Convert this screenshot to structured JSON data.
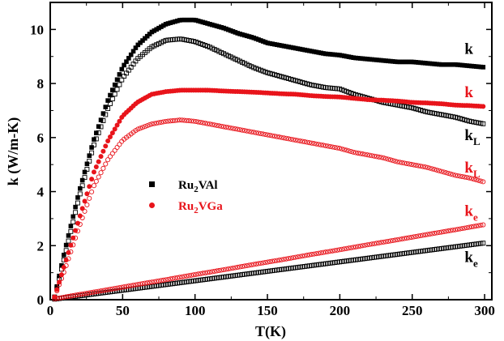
{
  "chart_data": {
    "type": "scatter",
    "xlabel": "T(K)",
    "ylabel": "k (W/m-K)",
    "xlim": [
      0,
      305
    ],
    "ylim": [
      0,
      11
    ],
    "xticks": [
      0,
      50,
      100,
      150,
      200,
      250,
      300
    ],
    "yticks": [
      0,
      2,
      4,
      6,
      8,
      10
    ],
    "grid": false,
    "legend_position": "center-left",
    "legend": [
      {
        "label_main": "Ru",
        "label_sub": "2",
        "label_rest": "VAl",
        "color": "#000000",
        "marker": "square"
      },
      {
        "label_main": "Ru",
        "label_sub": "2",
        "label_rest": "VGa",
        "color": "#e8141b",
        "marker": "circle"
      }
    ],
    "series": [
      {
        "material": "Ru2VAl",
        "quantity": "k",
        "marker": "filled-square",
        "color": "#000000",
        "x": [
          3,
          10,
          20,
          30,
          40,
          50,
          60,
          70,
          80,
          90,
          100,
          110,
          120,
          130,
          140,
          150,
          160,
          170,
          180,
          190,
          200,
          210,
          220,
          230,
          240,
          250,
          260,
          270,
          280,
          290,
          300
        ],
        "y": [
          0.1,
          1.8,
          4.0,
          5.9,
          7.4,
          8.6,
          9.4,
          9.9,
          10.2,
          10.35,
          10.35,
          10.2,
          10.05,
          9.85,
          9.7,
          9.5,
          9.4,
          9.3,
          9.2,
          9.1,
          9.05,
          8.95,
          8.9,
          8.85,
          8.8,
          8.8,
          8.75,
          8.7,
          8.7,
          8.65,
          8.6
        ]
      },
      {
        "material": "Ru2VAl",
        "quantity": "kL",
        "marker": "open-square",
        "color": "#000000",
        "x": [
          3,
          10,
          20,
          30,
          40,
          50,
          60,
          70,
          80,
          90,
          100,
          110,
          120,
          130,
          140,
          150,
          160,
          170,
          180,
          190,
          200,
          210,
          220,
          230,
          240,
          250,
          260,
          270,
          280,
          290,
          300
        ],
        "y": [
          0.1,
          1.6,
          3.8,
          5.7,
          7.1,
          8.2,
          8.9,
          9.35,
          9.6,
          9.65,
          9.55,
          9.35,
          9.1,
          8.85,
          8.6,
          8.4,
          8.25,
          8.1,
          7.95,
          7.85,
          7.8,
          7.6,
          7.45,
          7.3,
          7.2,
          7.1,
          6.95,
          6.85,
          6.75,
          6.6,
          6.5
        ]
      },
      {
        "material": "Ru2VAl",
        "quantity": "ke",
        "marker": "open-square",
        "color": "#000000",
        "x": [
          3,
          20,
          40,
          60,
          80,
          100,
          120,
          140,
          160,
          180,
          200,
          220,
          240,
          260,
          280,
          300
        ],
        "y": [
          0.02,
          0.14,
          0.28,
          0.42,
          0.56,
          0.7,
          0.84,
          0.98,
          1.12,
          1.26,
          1.4,
          1.54,
          1.68,
          1.82,
          1.96,
          2.1
        ]
      },
      {
        "material": "Ru2VGa",
        "quantity": "k",
        "marker": "filled-circle",
        "color": "#e8141b",
        "x": [
          3,
          10,
          20,
          30,
          40,
          50,
          60,
          70,
          80,
          90,
          100,
          110,
          120,
          130,
          140,
          150,
          160,
          170,
          180,
          190,
          200,
          210,
          220,
          230,
          240,
          250,
          260,
          270,
          280,
          290,
          300
        ],
        "y": [
          0.1,
          1.3,
          3.0,
          4.7,
          5.9,
          6.8,
          7.3,
          7.6,
          7.7,
          7.75,
          7.75,
          7.75,
          7.72,
          7.7,
          7.68,
          7.65,
          7.62,
          7.6,
          7.55,
          7.52,
          7.5,
          7.45,
          7.4,
          7.38,
          7.35,
          7.3,
          7.28,
          7.25,
          7.2,
          7.18,
          7.15
        ]
      },
      {
        "material": "Ru2VGa",
        "quantity": "kL",
        "marker": "open-circle",
        "color": "#e8141b",
        "x": [
          3,
          10,
          20,
          30,
          40,
          50,
          60,
          70,
          80,
          90,
          100,
          110,
          120,
          130,
          140,
          150,
          160,
          170,
          180,
          190,
          200,
          210,
          220,
          230,
          240,
          250,
          260,
          270,
          280,
          290,
          300
        ],
        "y": [
          0.1,
          1.1,
          2.7,
          4.2,
          5.2,
          5.9,
          6.3,
          6.5,
          6.6,
          6.65,
          6.6,
          6.5,
          6.4,
          6.3,
          6.2,
          6.1,
          6.0,
          5.9,
          5.8,
          5.7,
          5.6,
          5.45,
          5.35,
          5.25,
          5.1,
          5.0,
          4.9,
          4.75,
          4.6,
          4.5,
          4.35
        ]
      },
      {
        "material": "Ru2VGa",
        "quantity": "ke",
        "marker": "open-circle",
        "color": "#e8141b",
        "x": [
          3,
          20,
          40,
          60,
          80,
          100,
          120,
          140,
          160,
          180,
          200,
          220,
          240,
          260,
          280,
          300
        ],
        "y": [
          0.03,
          0.19,
          0.37,
          0.56,
          0.74,
          0.93,
          1.11,
          1.3,
          1.48,
          1.67,
          1.85,
          2.04,
          2.22,
          2.41,
          2.59,
          2.78
        ]
      }
    ],
    "annotations": [
      {
        "main": "k",
        "sub": "",
        "color": "#000000",
        "x": 303,
        "y": 9.1
      },
      {
        "main": "k",
        "sub": "",
        "color": "#e8141b",
        "x": 303,
        "y": 7.5
      },
      {
        "main": "k",
        "sub": "L",
        "color": "#000000",
        "x": 303,
        "y": 5.9
      },
      {
        "main": "k",
        "sub": "L",
        "color": "#e8141b",
        "x": 303,
        "y": 4.7
      },
      {
        "main": "k",
        "sub": "e",
        "color": "#e8141b",
        "x": 303,
        "y": 3.1
      },
      {
        "main": "k",
        "sub": "e",
        "color": "#000000",
        "x": 303,
        "y": 1.4
      }
    ]
  }
}
